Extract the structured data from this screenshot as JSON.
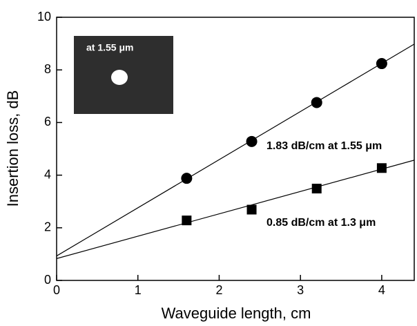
{
  "chart_data": {
    "type": "scatter",
    "x_label": "Waveguide length, cm",
    "y_label": "Insertion loss, dB",
    "xlim": [
      0,
      4.4
    ],
    "ylim": [
      0,
      10
    ],
    "xticks": [
      0,
      1,
      2,
      3,
      4
    ],
    "yticks": [
      0,
      2,
      4,
      6,
      8,
      10
    ],
    "color": "#000000",
    "series": [
      {
        "marker": "circle",
        "x": [
          1.6,
          2.4,
          3.2,
          4.0
        ],
        "values": [
          3.88,
          5.28,
          6.76,
          8.24
        ]
      },
      {
        "marker": "square",
        "x": [
          1.6,
          2.4,
          3.2,
          4.0
        ],
        "values": [
          2.28,
          2.69,
          3.49,
          4.27
        ]
      }
    ],
    "fits": [
      {
        "x": [
          0,
          4.4
        ],
        "values": [
          0.93,
          8.98
        ]
      },
      {
        "x": [
          0,
          4.4
        ],
        "values": [
          0.83,
          4.57
        ]
      }
    ],
    "annotations": [
      "1.83 dB/cm at 1.55 μm",
      "0.85 dB/cm at 1.3 μm"
    ],
    "inset_label": "at 1.55 μm"
  }
}
